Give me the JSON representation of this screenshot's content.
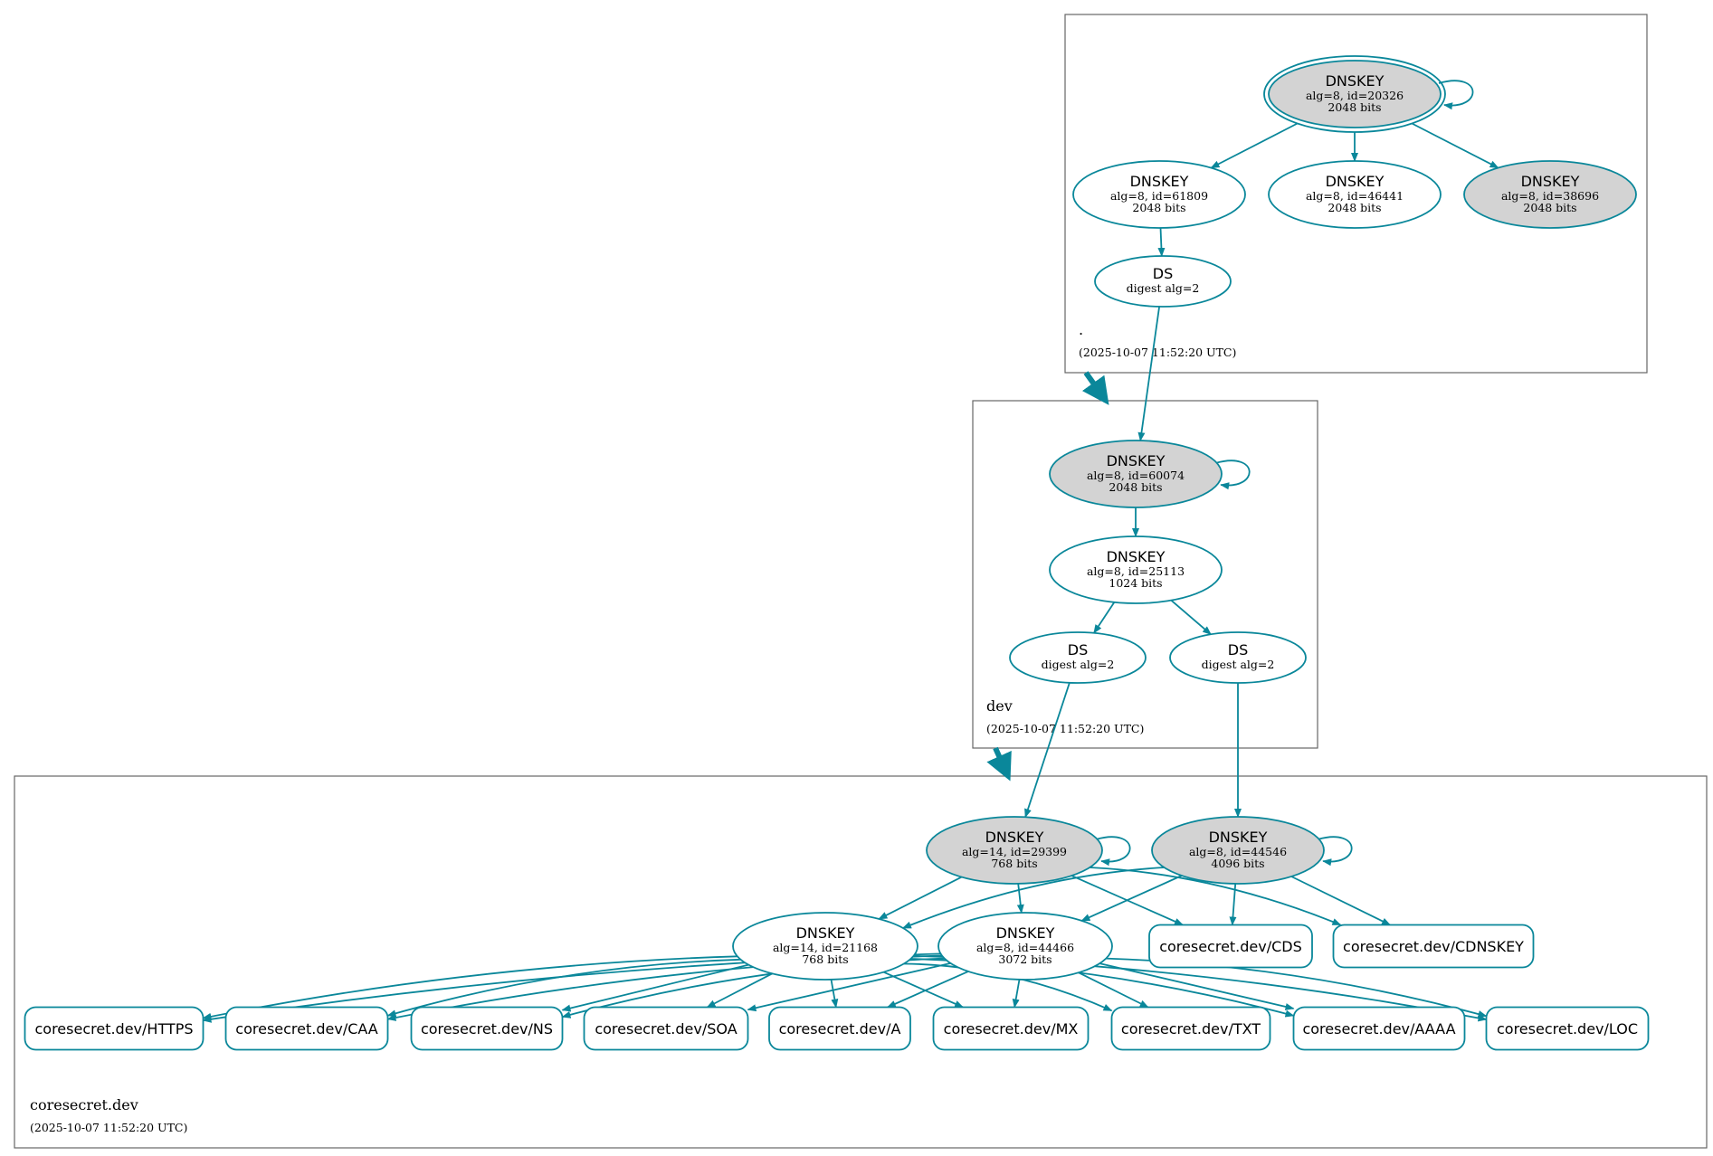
{
  "colors": {
    "edge": "#0a879a",
    "node_stroke": "#0a879a",
    "filled": "#d3d3d3",
    "cluster_border": "#666666"
  },
  "zones": [
    {
      "id": "root",
      "name": ".",
      "timestamp": "(2025-10-07 11:52:20 UTC)"
    },
    {
      "id": "dev",
      "name": "dev",
      "timestamp": "(2025-10-07 11:52:20 UTC)"
    },
    {
      "id": "coresecret",
      "name": "coresecret.dev",
      "timestamp": "(2025-10-07 11:52:20 UTC)"
    }
  ],
  "nodes": [
    {
      "id": "k20326",
      "kind": "key",
      "title": "DNSKEY",
      "line1": "alg=8, id=20326",
      "line2": "2048 bits",
      "filled": true,
      "double": true
    },
    {
      "id": "k61809",
      "kind": "key",
      "title": "DNSKEY",
      "line1": "alg=8, id=61809",
      "line2": "2048 bits",
      "filled": false
    },
    {
      "id": "k46441",
      "kind": "key",
      "title": "DNSKEY",
      "line1": "alg=8, id=46441",
      "line2": "2048 bits",
      "filled": false
    },
    {
      "id": "k38696",
      "kind": "key",
      "title": "DNSKEY",
      "line1": "alg=8, id=38696",
      "line2": "2048 bits",
      "filled": true
    },
    {
      "id": "dsroot",
      "kind": "ds",
      "title": "DS",
      "line1": "digest alg=2"
    },
    {
      "id": "k60074",
      "kind": "key",
      "title": "DNSKEY",
      "line1": "alg=8, id=60074",
      "line2": "2048 bits",
      "filled": true
    },
    {
      "id": "k25113",
      "kind": "key",
      "title": "DNSKEY",
      "line1": "alg=8, id=25113",
      "line2": "1024 bits",
      "filled": false
    },
    {
      "id": "dsa",
      "kind": "ds",
      "title": "DS",
      "line1": "digest alg=2"
    },
    {
      "id": "dsb",
      "kind": "ds",
      "title": "DS",
      "line1": "digest alg=2"
    },
    {
      "id": "k29399",
      "kind": "key",
      "title": "DNSKEY",
      "line1": "alg=14, id=29399",
      "line2": "768 bits",
      "filled": true
    },
    {
      "id": "k44546",
      "kind": "key",
      "title": "DNSKEY",
      "line1": "alg=8, id=44546",
      "line2": "4096 bits",
      "filled": true
    },
    {
      "id": "k21168",
      "kind": "key",
      "title": "DNSKEY",
      "line1": "alg=14, id=21168",
      "line2": "768 bits",
      "filled": false
    },
    {
      "id": "k44466",
      "kind": "key",
      "title": "DNSKEY",
      "line1": "alg=8, id=44466",
      "line2": "3072 bits",
      "filled": false
    },
    {
      "id": "cds",
      "kind": "rr",
      "title": "coresecret.dev/CDS"
    },
    {
      "id": "cdnskey",
      "kind": "rr",
      "title": "coresecret.dev/CDNSKEY"
    },
    {
      "id": "https",
      "kind": "rr",
      "title": "coresecret.dev/HTTPS"
    },
    {
      "id": "caa",
      "kind": "rr",
      "title": "coresecret.dev/CAA"
    },
    {
      "id": "ns",
      "kind": "rr",
      "title": "coresecret.dev/NS"
    },
    {
      "id": "soa",
      "kind": "rr",
      "title": "coresecret.dev/SOA"
    },
    {
      "id": "a",
      "kind": "rr",
      "title": "coresecret.dev/A"
    },
    {
      "id": "mx",
      "kind": "rr",
      "title": "coresecret.dev/MX"
    },
    {
      "id": "txt",
      "kind": "rr",
      "title": "coresecret.dev/TXT"
    },
    {
      "id": "aaaa",
      "kind": "rr",
      "title": "coresecret.dev/AAAA"
    },
    {
      "id": "loc",
      "kind": "rr",
      "title": "coresecret.dev/LOC"
    }
  ],
  "edges": [
    [
      "k20326",
      "k20326"
    ],
    [
      "k20326",
      "k61809"
    ],
    [
      "k20326",
      "k46441"
    ],
    [
      "k20326",
      "k38696"
    ],
    [
      "k61809",
      "dsroot"
    ],
    [
      "dsroot",
      "k60074"
    ],
    [
      "k60074",
      "k60074"
    ],
    [
      "k60074",
      "k25113"
    ],
    [
      "k25113",
      "dsa"
    ],
    [
      "k25113",
      "dsb"
    ],
    [
      "dsa",
      "k29399"
    ],
    [
      "dsb",
      "k44546"
    ],
    [
      "k29399",
      "k29399"
    ],
    [
      "k29399",
      "k21168"
    ],
    [
      "k29399",
      "k44466"
    ],
    [
      "k29399",
      "cds"
    ],
    [
      "k29399",
      "cdnskey"
    ],
    [
      "k44546",
      "k44546"
    ],
    [
      "k44546",
      "k21168"
    ],
    [
      "k44546",
      "k44466"
    ],
    [
      "k44546",
      "cds"
    ],
    [
      "k44546",
      "cdnskey"
    ],
    [
      "k21168",
      "https"
    ],
    [
      "k21168",
      "caa"
    ],
    [
      "k21168",
      "ns"
    ],
    [
      "k21168",
      "soa"
    ],
    [
      "k21168",
      "a"
    ],
    [
      "k21168",
      "mx"
    ],
    [
      "k21168",
      "txt"
    ],
    [
      "k21168",
      "aaaa"
    ],
    [
      "k21168",
      "loc"
    ],
    [
      "k44466",
      "https"
    ],
    [
      "k44466",
      "caa"
    ],
    [
      "k44466",
      "ns"
    ],
    [
      "k44466",
      "soa"
    ],
    [
      "k44466",
      "a"
    ],
    [
      "k44466",
      "mx"
    ],
    [
      "k44466",
      "txt"
    ],
    [
      "k44466",
      "aaaa"
    ],
    [
      "k44466",
      "loc"
    ]
  ],
  "delegations": [
    [
      "root",
      "dev"
    ],
    [
      "dev",
      "coresecret"
    ]
  ]
}
